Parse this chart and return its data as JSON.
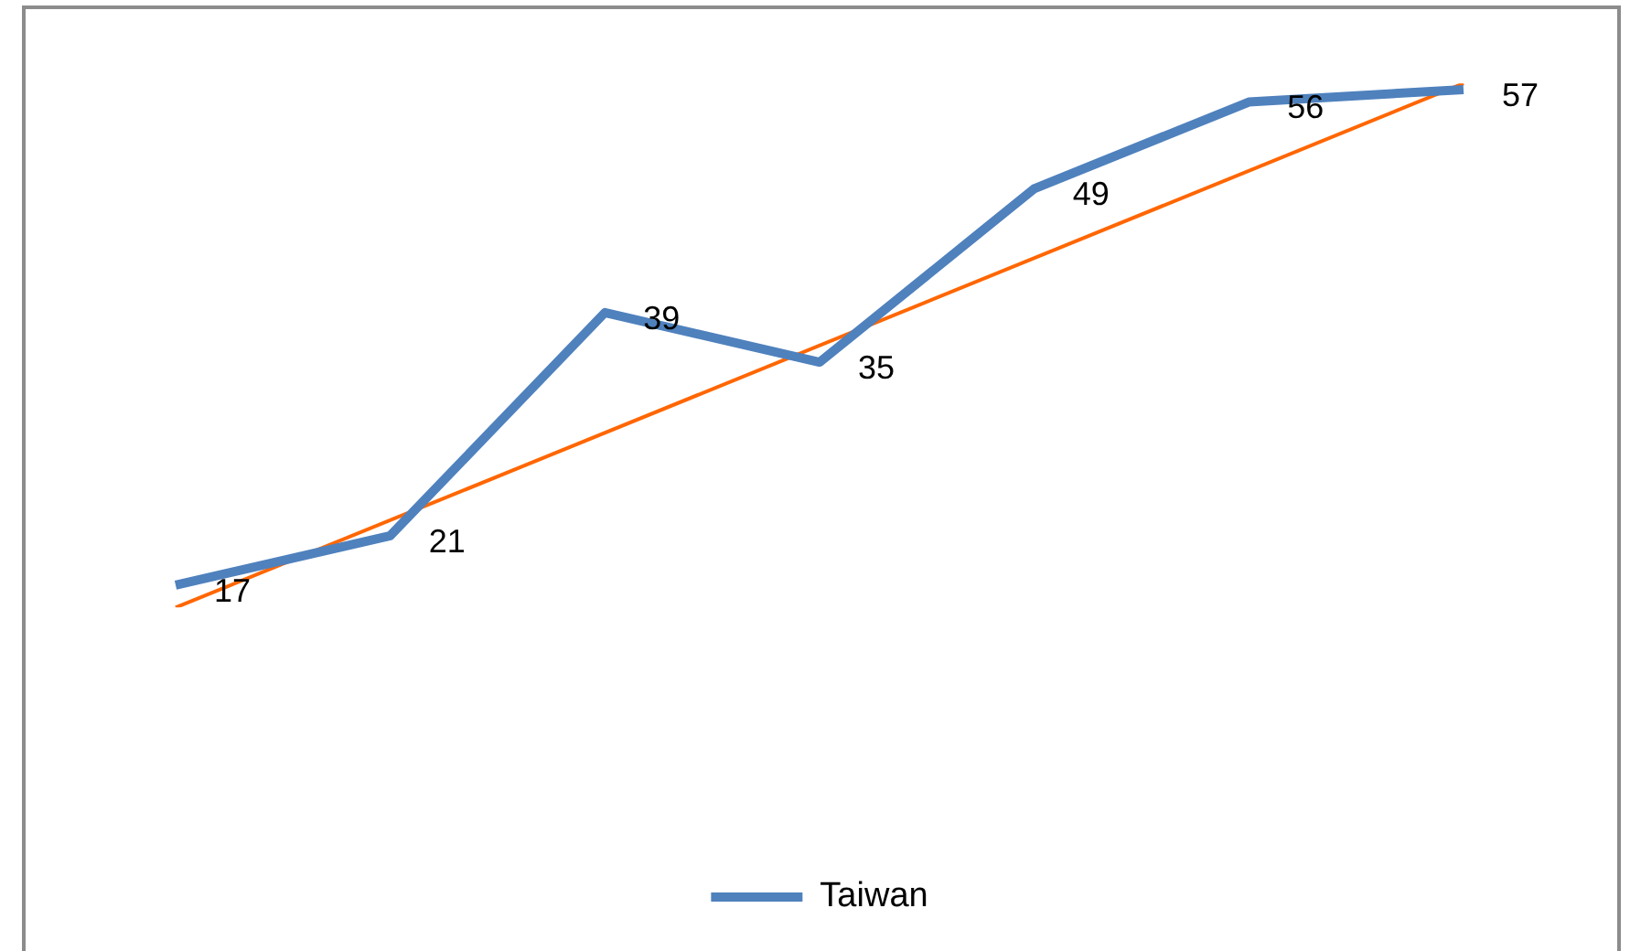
{
  "chart_data": {
    "type": "line",
    "categories": [
      null,
      null,
      null,
      null,
      null,
      null,
      null
    ],
    "tick_labels": false,
    "legend": "bottom",
    "series": [
      {
        "name": "Taiwan",
        "color": "#4f81bd",
        "values": [
          17,
          21,
          39,
          35,
          49,
          56,
          57
        ],
        "value_labels": [
          "17",
          "21",
          "39",
          "35",
          "49",
          "56",
          "57"
        ]
      },
      {
        "type": "line",
        "color": "#ff6600",
        "values": [
          15.2,
          null,
          null,
          null,
          null,
          null,
          57.5
        ]
      }
    ]
  }
}
